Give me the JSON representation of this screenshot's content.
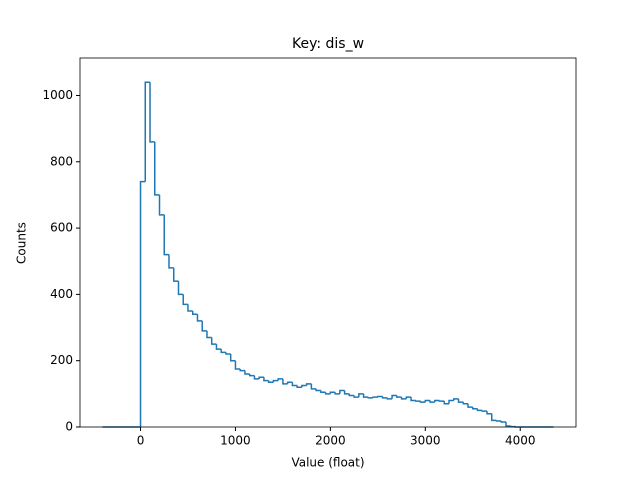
{
  "chart_data": {
    "type": "histogram",
    "title": "Key: dis_w",
    "xlabel": "Value (float)",
    "ylabel": "Counts",
    "bins": [
      -400,
      -350,
      -300,
      -250,
      -200,
      -150,
      -100,
      -50,
      0,
      50,
      100,
      150,
      200,
      250,
      300,
      350,
      400,
      450,
      500,
      550,
      600,
      650,
      700,
      750,
      800,
      850,
      900,
      950,
      1000,
      1050,
      1100,
      1150,
      1200,
      1250,
      1300,
      1350,
      1400,
      1450,
      1500,
      1550,
      1600,
      1650,
      1700,
      1750,
      1800,
      1850,
      1900,
      1950,
      2000,
      2050,
      2100,
      2150,
      2200,
      2250,
      2300,
      2350,
      2400,
      2450,
      2500,
      2550,
      2600,
      2650,
      2700,
      2750,
      2800,
      2850,
      2900,
      2950,
      3000,
      3050,
      3100,
      3150,
      3200,
      3250,
      3300,
      3350,
      3400,
      3450,
      3500,
      3550,
      3600,
      3650,
      3700,
      3750,
      3800,
      3850,
      3900,
      3950,
      4000,
      4050,
      4100,
      4150,
      4200,
      4250,
      4300,
      4350
    ],
    "values": [
      0,
      0,
      0,
      0,
      0,
      0,
      0,
      0,
      740,
      1040,
      860,
      700,
      640,
      520,
      480,
      440,
      400,
      370,
      350,
      340,
      320,
      290,
      270,
      250,
      235,
      225,
      220,
      200,
      175,
      170,
      160,
      155,
      145,
      150,
      140,
      135,
      140,
      145,
      130,
      135,
      125,
      120,
      125,
      130,
      115,
      110,
      105,
      100,
      105,
      100,
      110,
      100,
      95,
      90,
      100,
      90,
      88,
      90,
      92,
      88,
      85,
      95,
      90,
      85,
      90,
      80,
      78,
      75,
      80,
      75,
      80,
      78,
      70,
      80,
      85,
      75,
      70,
      60,
      55,
      50,
      48,
      40,
      20,
      18,
      15,
      3,
      1,
      0,
      0,
      0,
      0,
      0,
      0,
      0,
      0
    ],
    "color": "#1f77b4",
    "xlim": [
      -637.5,
      4587.5
    ],
    "ylim": [
      0,
      1113
    ],
    "xticks": [
      0,
      1000,
      2000,
      3000,
      4000
    ],
    "yticks": [
      0,
      200,
      400,
      600,
      800,
      1000
    ]
  }
}
